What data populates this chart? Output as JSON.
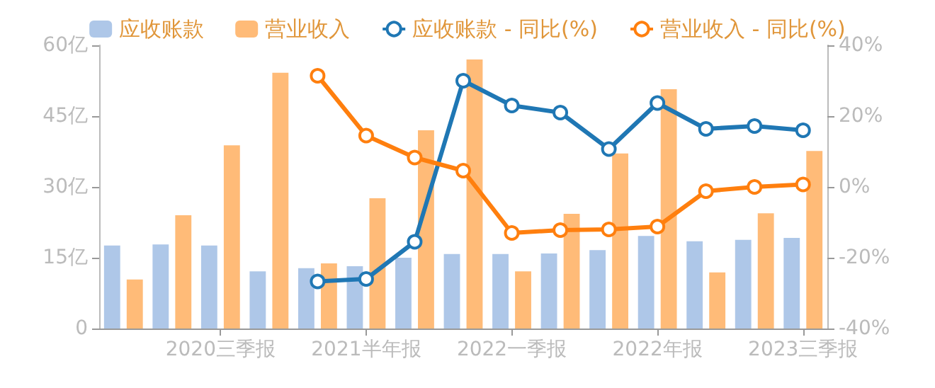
{
  "chart_data": {
    "type": "bar",
    "categories": [
      null,
      null,
      "2020三季报",
      null,
      null,
      "2021半年报",
      null,
      null,
      "2022一季报",
      null,
      null,
      "2022年报",
      null,
      null,
      "2023三季报"
    ],
    "series": [
      {
        "name": "应收账款",
        "color": "#aec7e8",
        "values": [
          17.6,
          17.8,
          17.6,
          12.1,
          12.8,
          13.2,
          15.0,
          15.8,
          15.8,
          15.9,
          16.6,
          19.6,
          18.5,
          18.8,
          19.2
        ]
      },
      {
        "name": "营业收入",
        "color": "#ffbb78",
        "values": [
          10.4,
          24.0,
          38.8,
          54.2,
          13.8,
          27.6,
          42.0,
          57.0,
          12.1,
          24.3,
          37.1,
          50.7,
          11.9,
          24.4,
          37.6
        ]
      },
      {
        "name": "应收账款 - 同比(%)",
        "type": "line",
        "axis": "y2",
        "color": "#1f77b4",
        "values": [
          null,
          null,
          null,
          null,
          -26.7,
          -26.0,
          -15.5,
          30.0,
          23.0,
          21.0,
          10.7,
          23.7,
          16.4,
          17.2,
          16.0
        ]
      },
      {
        "name": "营业收入 - 同比(%)",
        "type": "line",
        "axis": "y2",
        "color": "#ff7f0e",
        "values": [
          null,
          null,
          null,
          null,
          31.4,
          14.5,
          8.3,
          4.6,
          -13.0,
          -12.2,
          -12.0,
          -11.2,
          -1.2,
          0,
          0.7
        ]
      }
    ],
    "ylim": [
      0,
      60
    ],
    "yticks": [
      {
        "value": 0,
        "label": "0"
      },
      {
        "value": 15,
        "label": "15亿"
      },
      {
        "value": 30,
        "label": "30亿"
      },
      {
        "value": 45,
        "label": "45亿"
      },
      {
        "value": 60,
        "label": "60亿"
      }
    ],
    "y2lim": [
      -40,
      40
    ],
    "y2ticks": [
      {
        "value": -40,
        "label": "-40%"
      },
      {
        "value": -20,
        "label": "-20%"
      },
      {
        "value": 0,
        "label": "0%"
      },
      {
        "value": 20,
        "label": "20%"
      },
      {
        "value": 40,
        "label": "40%"
      }
    ],
    "grid": false,
    "legend": "top",
    "marker": "circle",
    "line_style": "solid"
  }
}
